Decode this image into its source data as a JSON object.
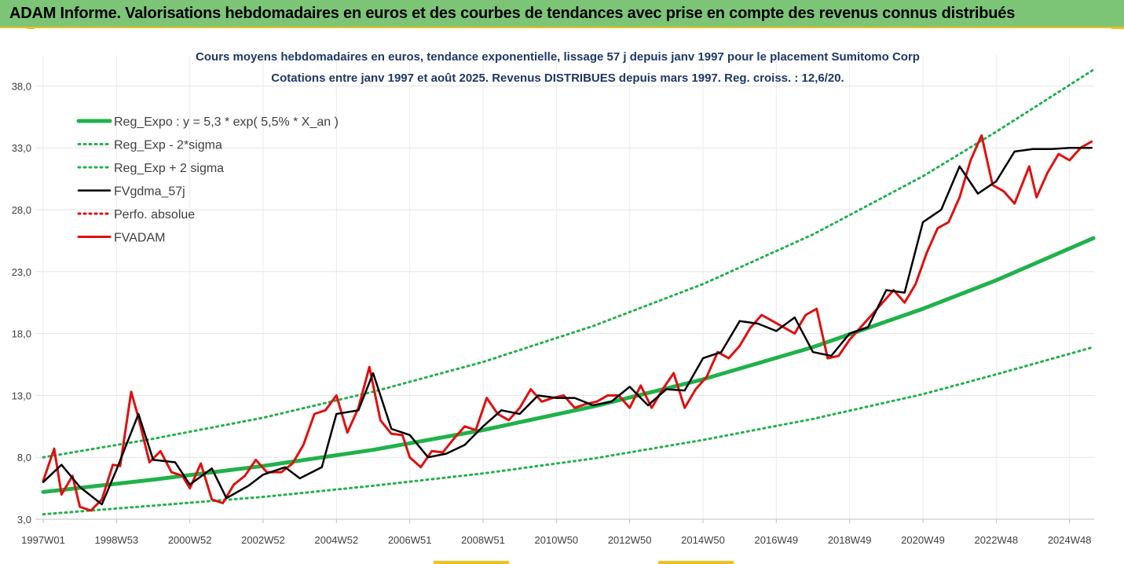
{
  "header": {
    "title": "ADAM Informe. Valorisations hebdomadaires en euros et des courbes de tendances avec prise en compte des revenus connus distribués"
  },
  "chart_data": {
    "type": "line",
    "title_line1": "Cours moyens hebdomadaires en euros, tendance exponentielle, lissage 57 j depuis janv 1997 pour le placement Sumitomo Corp",
    "title_line2": "Cotations entre janv 1997 et août 2025. Revenus DISTRIBUES depuis mars 1997. Reg. croiss. : 12,6/20.",
    "ylim": [
      3,
      40.5
    ],
    "yticks": [
      "3,0",
      "8,0",
      "13,0",
      "18,0",
      "23,0",
      "28,0",
      "33,0",
      "38,0"
    ],
    "ytick_values": [
      3,
      8,
      13,
      18,
      23,
      28,
      33,
      38
    ],
    "xlim": [
      1997.0,
      2025.65
    ],
    "xtick_labels": [
      "1997W01",
      "1998W53",
      "2000W52",
      "2002W52",
      "2004W52",
      "2006W51",
      "2008W51",
      "2010W50",
      "2012W50",
      "2014W50",
      "2016W49",
      "2018W49",
      "2020W49",
      "2022W48",
      "2024W48"
    ],
    "xtick_values": [
      1997.0,
      1999.0,
      2001.0,
      2003.0,
      2005.0,
      2007.0,
      2009.0,
      2011.0,
      2013.0,
      2015.0,
      2017.0,
      2019.0,
      2021.0,
      2023.0,
      2025.0
    ],
    "grid": true,
    "legend_position": "top-left",
    "series": [
      {
        "name": "Reg_Expo : y = 5,3 * exp( 5,5% *  X_an )",
        "color": "#20b24a",
        "style": "solid",
        "width": 5,
        "x": [
          1997.0,
          2000.0,
          2003.0,
          2006.0,
          2009.0,
          2012.0,
          2015.0,
          2018.0,
          2021.0,
          2023.0,
          2025.65
        ],
        "values": [
          5.2,
          6.2,
          7.3,
          8.6,
          10.2,
          12.1,
          14.3,
          16.9,
          20.0,
          22.3,
          25.7
        ]
      },
      {
        "name": "Reg_Exp - 2*sigma",
        "color": "#20b24a",
        "style": "dotted",
        "width": 3,
        "x": [
          1997.0,
          2000.0,
          2003.0,
          2006.0,
          2009.0,
          2012.0,
          2015.0,
          2018.0,
          2021.0,
          2023.0,
          2025.65
        ],
        "values": [
          3.4,
          4.1,
          4.8,
          5.7,
          6.7,
          7.9,
          9.4,
          11.1,
          13.1,
          14.7,
          16.9
        ]
      },
      {
        "name": "Reg_Exp + 2 sigma",
        "color": "#20b24a",
        "style": "dotted",
        "width": 3,
        "x": [
          1997.0,
          2000.0,
          2003.0,
          2006.0,
          2009.0,
          2012.0,
          2015.0,
          2018.0,
          2021.0,
          2023.0,
          2025.65
        ],
        "values": [
          8.0,
          9.5,
          11.2,
          13.3,
          15.7,
          18.6,
          22.0,
          26.0,
          30.7,
          34.3,
          39.3
        ]
      },
      {
        "name": "FVgdma_57j",
        "color": "#000000",
        "style": "solid",
        "width": 2.5,
        "x": [
          1997.0,
          1997.5,
          1998.0,
          1998.6,
          1999.0,
          1999.6,
          2000.0,
          2000.6,
          2001.0,
          2001.6,
          2002.0,
          2002.6,
          2003.0,
          2003.6,
          2004.0,
          2004.6,
          2005.0,
          2005.6,
          2006.0,
          2006.5,
          2007.0,
          2007.5,
          2008.0,
          2008.5,
          2009.0,
          2009.5,
          2010.0,
          2010.5,
          2011.0,
          2011.5,
          2012.0,
          2012.5,
          2013.0,
          2013.5,
          2014.0,
          2014.5,
          2015.0,
          2015.5,
          2016.0,
          2016.5,
          2017.0,
          2017.5,
          2018.0,
          2018.5,
          2019.0,
          2019.5,
          2020.0,
          2020.5,
          2021.0,
          2021.5,
          2022.0,
          2022.5,
          2023.0,
          2023.5,
          2024.0,
          2024.5,
          2025.0,
          2025.6
        ],
        "values": [
          6.0,
          7.4,
          5.6,
          4.2,
          7.0,
          11.5,
          7.8,
          7.6,
          5.8,
          7.1,
          4.7,
          5.7,
          6.6,
          7.2,
          6.3,
          7.2,
          11.5,
          11.8,
          14.8,
          10.3,
          9.8,
          8.0,
          8.3,
          9.0,
          10.5,
          11.8,
          11.5,
          13.0,
          12.8,
          12.8,
          12.2,
          12.5,
          13.7,
          12.2,
          13.5,
          13.4,
          16.0,
          16.5,
          19.0,
          18.8,
          18.2,
          19.3,
          16.5,
          16.2,
          18.0,
          18.5,
          21.5,
          21.3,
          27.0,
          28.0,
          31.5,
          29.3,
          30.3,
          32.7,
          32.9,
          32.9,
          33.0,
          33.0
        ]
      },
      {
        "name": "Perfo. absolue",
        "color": "#e01010",
        "style": "dotted",
        "width": 3,
        "x": [],
        "values": []
      },
      {
        "name": "FVADAM",
        "color": "#e01010",
        "style": "solid",
        "width": 3,
        "x": [
          1997.0,
          1997.3,
          1997.5,
          1997.8,
          1998.0,
          1998.3,
          1998.6,
          1998.9,
          1999.1,
          1999.4,
          1999.6,
          1999.9,
          2000.2,
          2000.5,
          2000.8,
          2001.0,
          2001.3,
          2001.6,
          2001.9,
          2002.2,
          2002.5,
          2002.8,
          2003.1,
          2003.5,
          2003.8,
          2004.1,
          2004.4,
          2004.7,
          2005.0,
          2005.3,
          2005.6,
          2005.9,
          2006.2,
          2006.5,
          2006.8,
          2007.0,
          2007.3,
          2007.6,
          2007.9,
          2008.2,
          2008.5,
          2008.8,
          2009.1,
          2009.4,
          2009.7,
          2010.0,
          2010.3,
          2010.6,
          2010.9,
          2011.2,
          2011.5,
          2011.8,
          2012.1,
          2012.4,
          2012.7,
          2013.0,
          2013.3,
          2013.6,
          2013.9,
          2014.2,
          2014.5,
          2014.8,
          2015.1,
          2015.4,
          2015.7,
          2016.0,
          2016.3,
          2016.6,
          2016.9,
          2017.2,
          2017.5,
          2017.8,
          2018.1,
          2018.4,
          2018.7,
          2019.0,
          2019.3,
          2019.6,
          2019.9,
          2020.2,
          2020.5,
          2020.8,
          2021.1,
          2021.4,
          2021.7,
          2022.0,
          2022.3,
          2022.6,
          2022.9,
          2023.2,
          2023.5,
          2023.7,
          2023.9,
          2024.1,
          2024.4,
          2024.7,
          2025.0,
          2025.3,
          2025.6
        ],
        "values": [
          6.1,
          8.7,
          5.0,
          6.5,
          4.0,
          3.7,
          4.6,
          7.4,
          7.3,
          13.3,
          11.2,
          7.6,
          8.5,
          6.8,
          6.5,
          5.5,
          7.5,
          4.6,
          4.3,
          5.8,
          6.5,
          7.8,
          6.8,
          6.8,
          7.5,
          9.0,
          11.5,
          11.8,
          13.0,
          10.0,
          12.0,
          15.3,
          11.0,
          9.9,
          9.8,
          8.0,
          7.2,
          8.5,
          8.4,
          9.5,
          10.5,
          10.2,
          12.8,
          11.5,
          11.0,
          12.0,
          13.5,
          12.5,
          12.8,
          13.0,
          12.0,
          12.3,
          12.5,
          13.0,
          13.0,
          12.0,
          13.8,
          12.0,
          13.5,
          14.8,
          12.0,
          13.5,
          14.5,
          16.5,
          16.0,
          17.0,
          18.5,
          19.5,
          19.0,
          18.5,
          18.0,
          19.5,
          20.0,
          16.0,
          16.2,
          17.5,
          18.5,
          19.5,
          20.5,
          21.5,
          20.5,
          22.0,
          24.5,
          26.5,
          27.0,
          29.0,
          32.0,
          34.0,
          30.0,
          29.5,
          28.5,
          30.0,
          31.5,
          29.0,
          31.0,
          32.5,
          32.0,
          33.0,
          33.5
        ]
      }
    ]
  }
}
